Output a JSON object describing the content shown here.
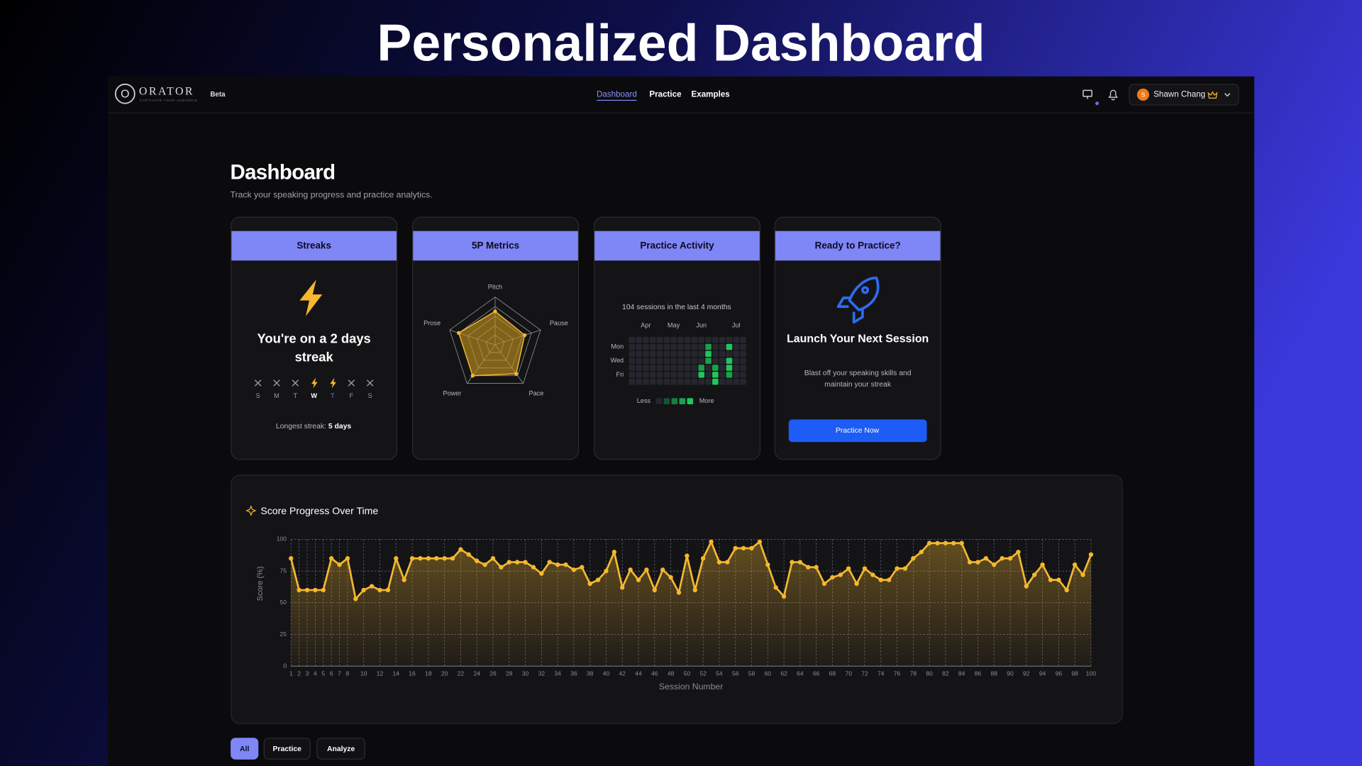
{
  "page_title": "Personalized Dashboard",
  "nav": {
    "brand": "ORATOR",
    "tagline": "CAPTIVATE YOUR AUDIENCE",
    "badge": "Beta",
    "links": [
      "Dashboard",
      "Practice",
      "Examples"
    ],
    "user": "Shawn Chang",
    "user_initial": "S"
  },
  "header": {
    "title": "Dashboard",
    "subtitle": "Track your speaking progress and practice analytics."
  },
  "streaks": {
    "title": "Streaks",
    "message": "You're on a 2 days streak",
    "days": [
      {
        "label": "S",
        "done": false
      },
      {
        "label": "M",
        "done": false
      },
      {
        "label": "T",
        "done": false
      },
      {
        "label": "W",
        "done": true
      },
      {
        "label": "T",
        "done": true,
        "today": true
      },
      {
        "label": "F",
        "done": false
      },
      {
        "label": "S",
        "done": false
      }
    ],
    "longest_label": "Longest streak:",
    "longest_value": "5 days"
  },
  "metrics_title": "5P Metrics",
  "activity_title": "Practice Activity",
  "practice": {
    "title": "Ready to Practice?",
    "heading": "Launch Your Next Session",
    "text": "Blast off your speaking skills and maintain your streak",
    "button": "Practice Now"
  },
  "score_title": "Score Progress Over Time",
  "filters": [
    "All",
    "Practice",
    "Analyze"
  ],
  "chart_data": [
    {
      "type": "radar",
      "categories": [
        "Pitch",
        "Pause",
        "Pace",
        "Power",
        "Prose"
      ],
      "values": [
        70,
        65,
        75,
        80,
        80
      ],
      "rlim": [
        0,
        100
      ],
      "color": "#f5b82e"
    },
    {
      "type": "heatmap",
      "subtitle": "104 sessions in the last 4 months",
      "categories": [
        null,
        null,
        "Apr",
        null,
        null,
        null,
        "May",
        null,
        null,
        null,
        "Jun",
        null,
        null,
        null,
        null,
        "Jul",
        null
      ],
      "rows": [
        null,
        "Mon",
        null,
        "Wed",
        null,
        "Fri",
        null
      ],
      "values": [
        [
          0,
          0,
          0,
          0,
          0,
          0,
          0,
          0,
          0,
          0,
          0,
          0,
          0,
          0,
          0,
          0,
          0
        ],
        [
          0,
          0,
          0,
          0,
          0,
          0,
          0,
          0,
          0,
          0,
          0,
          3,
          0,
          0,
          4,
          0,
          0
        ],
        [
          0,
          0,
          0,
          0,
          0,
          0,
          0,
          0,
          0,
          0,
          0,
          4,
          0,
          0,
          0,
          0,
          0
        ],
        [
          0,
          0,
          0,
          0,
          0,
          0,
          0,
          0,
          0,
          0,
          0,
          3,
          0,
          0,
          4,
          0,
          0
        ],
        [
          0,
          0,
          0,
          0,
          0,
          0,
          0,
          0,
          0,
          0,
          3,
          0,
          3,
          0,
          4,
          0,
          0
        ],
        [
          0,
          0,
          0,
          0,
          0,
          0,
          0,
          0,
          0,
          0,
          4,
          0,
          4,
          0,
          3,
          0,
          0
        ],
        [
          0,
          0,
          0,
          0,
          0,
          0,
          0,
          0,
          0,
          0,
          0,
          0,
          4,
          0,
          0,
          0,
          0
        ]
      ],
      "colors": [
        "#26262e",
        "#14532d",
        "#15803d",
        "#16a34a",
        "#22c55e"
      ],
      "legend_low": "Less",
      "legend_high": "More"
    },
    {
      "type": "line",
      "ylabel": "Score (%)",
      "xlabel": "Session Number",
      "color": "#f5b82e",
      "x": [
        1,
        2,
        3,
        4,
        5,
        6,
        7,
        8,
        9,
        10,
        11,
        12,
        13,
        14,
        15,
        16,
        17,
        18,
        19,
        20,
        21,
        22,
        23,
        24,
        25,
        26,
        27,
        28,
        29,
        30,
        31,
        32,
        33,
        34,
        35,
        36,
        37,
        38,
        39,
        40,
        41,
        42,
        43,
        44,
        45,
        46,
        47,
        48,
        49,
        50,
        51,
        52,
        53,
        54,
        55,
        56,
        57,
        58,
        59,
        60,
        61,
        62,
        63,
        64,
        65,
        66,
        67,
        68,
        69,
        70,
        71,
        72,
        73,
        74,
        75,
        76,
        77,
        78,
        79,
        80,
        81,
        82,
        83,
        84,
        85,
        86,
        87,
        88,
        89,
        90,
        91,
        92,
        93,
        94,
        95,
        96,
        97,
        98,
        99,
        100
      ],
      "values": [
        85,
        60,
        60,
        60,
        60,
        85,
        80,
        85,
        53,
        60,
        63,
        60,
        60,
        85,
        68,
        85,
        85,
        85,
        85,
        85,
        85,
        92,
        88,
        83,
        80,
        85,
        78,
        82,
        82,
        82,
        78,
        73,
        82,
        80,
        80,
        76,
        78,
        65,
        68,
        75,
        90,
        62,
        76,
        68,
        76,
        60,
        76,
        70,
        58,
        87,
        60,
        85,
        98,
        82,
        82,
        93,
        93,
        93,
        98,
        80,
        62,
        55,
        82,
        82,
        78,
        78,
        65,
        70,
        72,
        77,
        65,
        77,
        72,
        68,
        68,
        77,
        77,
        85,
        90,
        97,
        97,
        97,
        97,
        97,
        82,
        82,
        85,
        80,
        85,
        85,
        90,
        63,
        72,
        80,
        68,
        68,
        60,
        80,
        72,
        88
      ],
      "xlim": [
        1,
        100
      ],
      "ylim": [
        0,
        100
      ],
      "xticks": [
        1,
        2,
        3,
        4,
        5,
        6,
        7,
        8,
        10,
        12,
        14,
        16,
        18,
        20,
        22,
        24,
        26,
        28,
        30,
        32,
        34,
        36,
        38,
        40,
        42,
        44,
        46,
        48,
        50,
        52,
        54,
        56,
        58,
        60,
        62,
        64,
        66,
        68,
        70,
        72,
        74,
        76,
        78,
        80,
        82,
        84,
        86,
        88,
        90,
        92,
        94,
        96,
        98,
        100
      ],
      "yticks": [
        0,
        25,
        50,
        75,
        100
      ],
      "grid": true
    }
  ]
}
